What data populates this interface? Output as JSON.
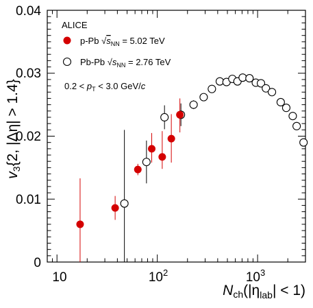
{
  "chart_data": {
    "type": "scatter",
    "experiment": "ALICE",
    "xlabel": "N_ch(|η_lab| < 1)",
    "ylabel": "v3{2, |Δη| > 1.4}",
    "xscale": "log",
    "xlim": [
      8,
      3000
    ],
    "ylim": [
      0,
      0.04
    ],
    "y_ticks": [
      "0",
      "0.01",
      "0.02",
      "0.03",
      "0.04"
    ],
    "x_ticks": [
      "10",
      "10²",
      "10³"
    ],
    "legend_position": "top-left",
    "legend": {
      "title": "ALICE",
      "pPb_label": "p-Pb √sNN = 5.02 TeV",
      "PbPb_label": "Pb-Pb √sNN = 2.76 TeV",
      "cut_label": "0.2 < pT < 3.0 GeV/c"
    },
    "series": [
      {
        "name": "p-Pb √sNN = 5.02 TeV",
        "color": "#d40000",
        "marker": "filled-circle",
        "points": [
          {
            "x": 17,
            "y": 0.006,
            "ylow": 0.0,
            "yhigh": 0.0133
          },
          {
            "x": 38,
            "y": 0.0086,
            "ylow": 0.0067,
            "yhigh": 0.0105
          },
          {
            "x": 64,
            "y": 0.0147,
            "ylow": 0.0138,
            "yhigh": 0.0156
          },
          {
            "x": 88,
            "y": 0.018,
            "ylow": 0.0158,
            "yhigh": 0.0205
          },
          {
            "x": 112,
            "y": 0.0167,
            "ylow": 0.0148,
            "yhigh": 0.0208
          },
          {
            "x": 138,
            "y": 0.0196,
            "ylow": 0.0158,
            "yhigh": 0.0235
          },
          {
            "x": 168,
            "y": 0.0234,
            "ylow": 0.0206,
            "yhigh": 0.026
          }
        ]
      },
      {
        "name": "Pb-Pb √sNN = 2.76 TeV",
        "color": "#000000",
        "marker": "open-circle",
        "points": [
          {
            "x": 47,
            "y": 0.0093,
            "ylow": 0.0,
            "yhigh": 0.021
          },
          {
            "x": 78,
            "y": 0.0159,
            "ylow": 0.0125,
            "yhigh": 0.0193
          },
          {
            "x": 118,
            "y": 0.023,
            "ylow": 0.0211,
            "yhigh": 0.0249
          },
          {
            "x": 172,
            "y": 0.0234,
            "ylow": 0.0216,
            "yhigh": 0.0252
          },
          {
            "x": 230,
            "y": 0.025,
            "ylow": 0.0243,
            "yhigh": 0.0257
          },
          {
            "x": 290,
            "y": 0.0262
          },
          {
            "x": 350,
            "y": 0.0275
          },
          {
            "x": 420,
            "y": 0.0287
          },
          {
            "x": 490,
            "y": 0.0286
          },
          {
            "x": 560,
            "y": 0.0291
          },
          {
            "x": 630,
            "y": 0.0287
          },
          {
            "x": 710,
            "y": 0.0293
          },
          {
            "x": 830,
            "y": 0.0292
          },
          {
            "x": 960,
            "y": 0.0285
          },
          {
            "x": 1080,
            "y": 0.0284
          },
          {
            "x": 1210,
            "y": 0.0276
          },
          {
            "x": 1390,
            "y": 0.027
          },
          {
            "x": 1700,
            "y": 0.0254
          },
          {
            "x": 1930,
            "y": 0.0245
          },
          {
            "x": 2240,
            "y": 0.0232
          },
          {
            "x": 2450,
            "y": 0.0216
          },
          {
            "x": 2870,
            "y": 0.019
          }
        ]
      }
    ]
  }
}
